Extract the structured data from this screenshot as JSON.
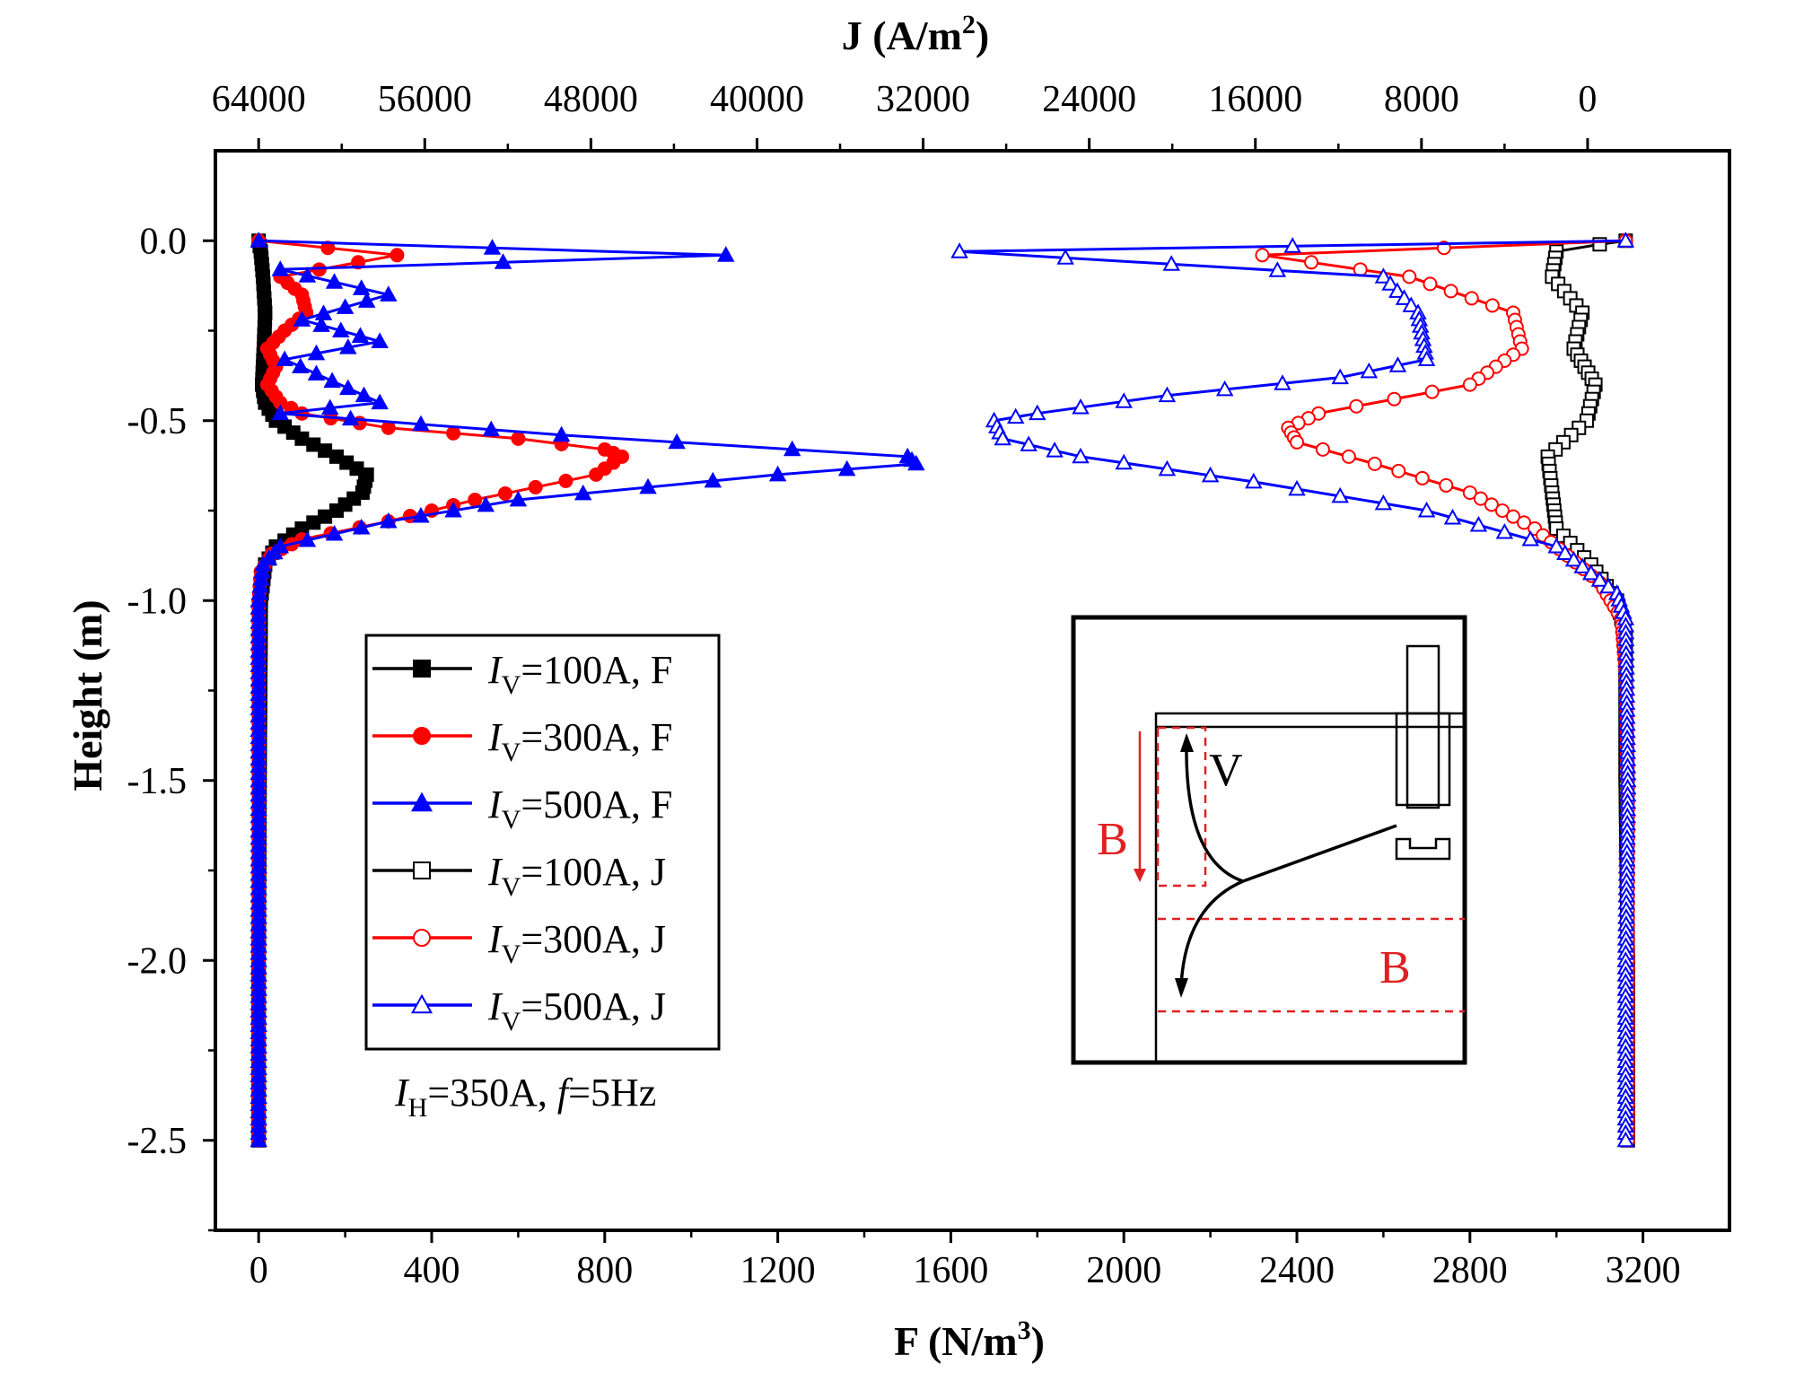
{
  "chart_data": {
    "type": "line",
    "title": "",
    "xlabel_bottom": "F (N/m",
    "xlabel_bottom_sup": "3",
    "xlabel_bottom_close": ")",
    "xlabel_top": "J (A/m",
    "xlabel_top_sup": "2",
    "xlabel_top_close": ")",
    "ylabel": "Height (m)",
    "x_bottom": {
      "range": [
        -100,
        3400
      ],
      "ticks": [
        0,
        400,
        800,
        1200,
        1600,
        2000,
        2400,
        2800,
        3200
      ],
      "tick_labels": [
        "0",
        "400",
        "800",
        "1200",
        "1600",
        "2000",
        "2400",
        "2800",
        "3200"
      ]
    },
    "x_top": {
      "ticks_F": [
        0,
        384,
        768,
        1152,
        1536,
        1920,
        2304,
        2688,
        3072
      ],
      "tick_labels": [
        "64000",
        "56000",
        "48000",
        "40000",
        "32000",
        "24000",
        "16000",
        "8000",
        "0"
      ]
    },
    "y": {
      "range": [
        -2.75,
        0.25
      ],
      "ticks": [
        0.0,
        -0.5,
        -1.0,
        -1.5,
        -2.0,
        -2.5
      ],
      "tick_labels": [
        "0.0",
        "-0.5",
        "-1.0",
        "-1.5",
        "-2.0",
        "-2.5"
      ]
    },
    "legend_placement": "middle-left",
    "series": [
      {
        "name": "100A, F",
        "prefix": "I",
        "sub": "V",
        "rest": "=100A, F",
        "color": "#000000",
        "marker": "square",
        "filled": true,
        "points": [
          [
            0,
            0
          ],
          [
            5,
            -0.03
          ],
          [
            10,
            -0.1
          ],
          [
            15,
            -0.2
          ],
          [
            12,
            -0.3
          ],
          [
            8,
            -0.4
          ],
          [
            15,
            -0.45
          ],
          [
            40,
            -0.5
          ],
          [
            100,
            -0.55
          ],
          [
            180,
            -0.6
          ],
          [
            250,
            -0.65
          ],
          [
            240,
            -0.7
          ],
          [
            180,
            -0.75
          ],
          [
            100,
            -0.8
          ],
          [
            40,
            -0.85
          ],
          [
            15,
            -0.9
          ],
          [
            5,
            -1.0
          ],
          [
            2,
            -1.5
          ],
          [
            0,
            -2.0
          ],
          [
            0,
            -2.5
          ]
        ]
      },
      {
        "name": "300A, F",
        "prefix": "I",
        "sub": "V",
        "rest": "=300A, F",
        "color": "#ff0000",
        "marker": "circle",
        "filled": true,
        "points": [
          [
            0,
            0
          ],
          [
            320,
            -0.04
          ],
          [
            50,
            -0.1
          ],
          [
            100,
            -0.15
          ],
          [
            110,
            -0.2
          ],
          [
            60,
            -0.25
          ],
          [
            20,
            -0.3
          ],
          [
            40,
            -0.35
          ],
          [
            20,
            -0.4
          ],
          [
            50,
            -0.45
          ],
          [
            100,
            -0.48
          ],
          [
            300,
            -0.52
          ],
          [
            600,
            -0.55
          ],
          [
            800,
            -0.58
          ],
          [
            840,
            -0.6
          ],
          [
            780,
            -0.65
          ],
          [
            500,
            -0.72
          ],
          [
            300,
            -0.78
          ],
          [
            100,
            -0.83
          ],
          [
            30,
            -0.87
          ],
          [
            5,
            -0.92
          ],
          [
            0,
            -1.0
          ],
          [
            0,
            -2.5
          ]
        ]
      },
      {
        "name": "500A, F",
        "prefix": "I",
        "sub": "V",
        "rest": "=500A, F",
        "color": "#0000ff",
        "marker": "triangle",
        "filled": true,
        "points": [
          [
            0,
            0
          ],
          [
            1080,
            -0.04
          ],
          [
            50,
            -0.08
          ],
          [
            300,
            -0.15
          ],
          [
            100,
            -0.22
          ],
          [
            280,
            -0.28
          ],
          [
            60,
            -0.33
          ],
          [
            280,
            -0.45
          ],
          [
            50,
            -0.48
          ],
          [
            700,
            -0.54
          ],
          [
            1500,
            -0.6
          ],
          [
            1520,
            -0.62
          ],
          [
            1200,
            -0.65
          ],
          [
            600,
            -0.72
          ],
          [
            300,
            -0.78
          ],
          [
            50,
            -0.85
          ],
          [
            10,
            -0.9
          ],
          [
            0,
            -1.0
          ],
          [
            0,
            -2.5
          ]
        ]
      },
      {
        "name": "100A, J",
        "prefix": "I",
        "sub": "V",
        "rest": "=100A, J",
        "color": "#000000",
        "marker": "square",
        "filled": false,
        "points": [
          [
            3160,
            0
          ],
          [
            3100,
            -0.01
          ],
          [
            3000,
            -0.03
          ],
          [
            2990,
            -0.1
          ],
          [
            3060,
            -0.2
          ],
          [
            3040,
            -0.3
          ],
          [
            3090,
            -0.4
          ],
          [
            3070,
            -0.5
          ],
          [
            2980,
            -0.6
          ],
          [
            2990,
            -0.7
          ],
          [
            3000,
            -0.8
          ],
          [
            3080,
            -0.9
          ],
          [
            3140,
            -1.0
          ],
          [
            3160,
            -1.1
          ],
          [
            3160,
            -1.5
          ],
          [
            3165,
            -2.0
          ],
          [
            3165,
            -2.5
          ]
        ]
      },
      {
        "name": "300A, J",
        "prefix": "I",
        "sub": "V",
        "rest": "=300A, J",
        "color": "#ff0000",
        "marker": "circle",
        "filled": false,
        "points": [
          [
            3160,
            0
          ],
          [
            2320,
            -0.04
          ],
          [
            2660,
            -0.1
          ],
          [
            2900,
            -0.2
          ],
          [
            2920,
            -0.3
          ],
          [
            2800,
            -0.4
          ],
          [
            2450,
            -0.48
          ],
          [
            2380,
            -0.52
          ],
          [
            2400,
            -0.56
          ],
          [
            2580,
            -0.62
          ],
          [
            2800,
            -0.7
          ],
          [
            2950,
            -0.8
          ],
          [
            3100,
            -0.95
          ],
          [
            3150,
            -1.05
          ],
          [
            3160,
            -1.2
          ],
          [
            3165,
            -1.5
          ],
          [
            3165,
            -2.5
          ]
        ]
      },
      {
        "name": "500A, J",
        "prefix": "I",
        "sub": "V",
        "rest": "=500A, J",
        "color": "#0000ff",
        "marker": "triangle",
        "filled": false,
        "points": [
          [
            3160,
            0
          ],
          [
            1620,
            -0.03
          ],
          [
            2600,
            -0.1
          ],
          [
            2680,
            -0.2
          ],
          [
            2700,
            -0.33
          ],
          [
            2500,
            -0.38
          ],
          [
            2100,
            -0.43
          ],
          [
            1800,
            -0.48
          ],
          [
            1700,
            -0.5
          ],
          [
            1720,
            -0.55
          ],
          [
            1900,
            -0.6
          ],
          [
            2300,
            -0.67
          ],
          [
            2700,
            -0.75
          ],
          [
            3000,
            -0.85
          ],
          [
            3140,
            -0.98
          ],
          [
            3160,
            -1.05
          ],
          [
            3165,
            -1.5
          ],
          [
            3160,
            -2.0
          ],
          [
            3160,
            -2.5
          ]
        ]
      }
    ],
    "annotation": {
      "prefix": "I",
      "sub": "H",
      "mid": "=350A, ",
      "f_italic": "f",
      "rest": "=5Hz"
    },
    "inset": {
      "label_v": "V",
      "label_b1": "B",
      "label_b2": "B"
    }
  }
}
